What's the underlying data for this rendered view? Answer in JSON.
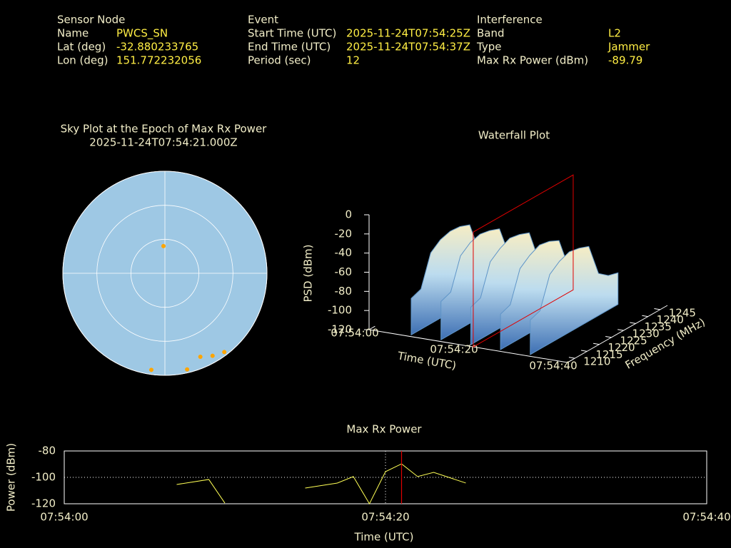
{
  "header": {
    "columns": [
      {
        "title": "Sensor Node",
        "rows": [
          {
            "label": "Name",
            "value": "PWCS_SN"
          },
          {
            "label": "Lat (deg)",
            "value": -32.880233765
          },
          {
            "label": "Lon (deg)",
            "value": 151.772232056
          }
        ]
      },
      {
        "title": "Event",
        "rows": [
          {
            "label": "Start Time (UTC)",
            "value": "2025-11-24T07:54:25Z"
          },
          {
            "label": "End Time (UTC)",
            "value": "2025-11-24T07:54:37Z"
          },
          {
            "label": "Period (sec)",
            "value": 12
          }
        ]
      },
      {
        "title": "Interference",
        "rows": [
          {
            "label": "Band",
            "value": "L2"
          },
          {
            "label": "Type",
            "value": "Jammer"
          },
          {
            "label": "Max Rx Power (dBm)",
            "value": -89.79
          }
        ]
      }
    ]
  },
  "chart_data": [
    {
      "type": "skyplot",
      "title": "Sky Plot at the Epoch of Max Rx Power",
      "subtitle": "2025-11-24T07:54:21.000Z",
      "rings": [
        0,
        30,
        60
      ],
      "color": "#ffa500",
      "points": {
        "az": [
          357,
          188,
          167,
          157,
          150,
          143
        ],
        "el": [
          66,
          4,
          3,
          10,
          6,
          3
        ]
      }
    },
    {
      "type": "waterfall",
      "title": "Waterfall Plot",
      "xlabel": "Time (UTC)",
      "ylabel": "Frequency (MHz)",
      "zlabel": "PSD (dBm)",
      "xlim": [
        0,
        40
      ],
      "xticks": [
        {
          "value": 0,
          "label": "07:54:00"
        },
        {
          "value": 20,
          "label": "07:54:20"
        },
        {
          "value": 40,
          "label": "07:54:40"
        }
      ],
      "ylim": [
        1207,
        1248
      ],
      "yticks": [
        1210,
        1215,
        1220,
        1225,
        1230,
        1235,
        1240,
        1245
      ],
      "zlim": [
        -120,
        0
      ],
      "zticks": [
        0,
        -20,
        -40,
        -60,
        -80,
        -100,
        -120
      ],
      "times": [
        8,
        14,
        20,
        26,
        32
      ],
      "frequencies": [
        1208,
        1212,
        1216,
        1220,
        1224,
        1228,
        1232,
        1236,
        1240,
        1244
      ],
      "psd": [
        [
          -82,
          -78,
          -46,
          -38,
          -35,
          -36,
          -40,
          -74,
          -82,
          -85
        ],
        [
          -80,
          -76,
          -44,
          -36,
          -33,
          -35,
          -39,
          -72,
          -80,
          -84
        ],
        [
          -81,
          -77,
          -45,
          -37,
          -32,
          -34,
          -38,
          -73,
          -81,
          -85
        ],
        [
          -83,
          -79,
          -47,
          -39,
          -34,
          -36,
          -41,
          -75,
          -83,
          -86
        ],
        [
          -84,
          -80,
          -48,
          -40,
          -36,
          -38,
          -42,
          -76,
          -84,
          -87
        ]
      ],
      "marker_x": 21,
      "marker_color": "#e00000"
    },
    {
      "type": "line",
      "title": "Max Rx Power",
      "xlabel": "Time (UTC)",
      "ylabel": "Power (dBm)",
      "x": [
        7,
        9,
        10,
        12,
        15,
        17,
        18,
        19,
        20,
        21,
        22,
        23,
        25
      ],
      "values": [
        -105.4,
        -101.6,
        -119.5,
        null,
        -108.1,
        -104.3,
        -99.4,
        -120,
        -95.7,
        -89.79,
        -99.4,
        -96.2,
        -104.3
      ],
      "color": "#ffff55",
      "xlim": [
        0,
        40
      ],
      "xticks": [
        {
          "value": 0,
          "label": "07:54:00"
        },
        {
          "value": 20,
          "label": "07:54:20"
        },
        {
          "value": 40,
          "label": "07:54:40"
        }
      ],
      "ylim": [
        -120,
        -80
      ],
      "yticks": [
        -80,
        -100,
        -120
      ],
      "grid": true,
      "marker_x": 21,
      "marker_color": "#e00000"
    }
  ]
}
